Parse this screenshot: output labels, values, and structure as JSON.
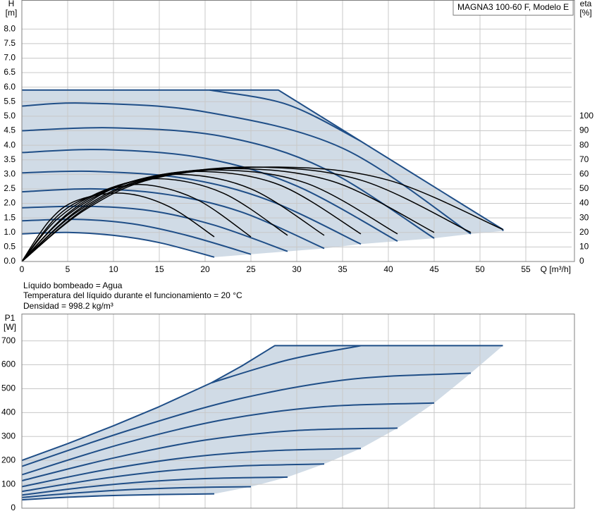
{
  "chart_data": [
    {
      "type": "line",
      "title": "MAGNA3 100-60 F, Modelo E",
      "y_label": "H",
      "y_unit": "[m]",
      "y2_label": "eta",
      "y2_unit": "[%]",
      "x_label": "Q [m³/h]",
      "annotations": [
        "Líquido bombeado = Agua",
        "Temperatura del líquido durante el funcionamiento = 20 °C",
        "Densidad = 998.2 kg/m³"
      ],
      "xlim": [
        0,
        60
      ],
      "ylim": [
        0,
        9
      ],
      "y2lim": [
        0,
        180
      ],
      "grid": true,
      "fill": "#d0dbe6",
      "xticks": [
        0,
        5,
        10,
        15,
        20,
        25,
        30,
        35,
        40,
        45,
        50,
        55
      ],
      "yticks": [
        {
          "value": 0,
          "label": "0.0"
        },
        {
          "value": 0.5,
          "label": "0.5"
        },
        {
          "value": 1,
          "label": "1.0"
        },
        {
          "value": 1.5,
          "label": "1.5"
        },
        {
          "value": 2,
          "label": "2.0"
        },
        {
          "value": 2.5,
          "label": "2.5"
        },
        {
          "value": 3,
          "label": "3.0"
        },
        {
          "value": 3.5,
          "label": "3.5"
        },
        {
          "value": 4,
          "label": "4.0"
        },
        {
          "value": 4.5,
          "label": "4.5"
        },
        {
          "value": 5,
          "label": "5.0"
        },
        {
          "value": 5.5,
          "label": "5.5"
        },
        {
          "value": 6,
          "label": "6.0"
        },
        {
          "value": 6.5,
          "label": "6.5"
        },
        {
          "value": 7,
          "label": "7.0"
        },
        {
          "value": 7.5,
          "label": "7.5"
        },
        {
          "value": 8,
          "label": "8.0"
        }
      ],
      "y2ticks": [
        0,
        10,
        20,
        30,
        40,
        50,
        60,
        70,
        80,
        90,
        100
      ],
      "series": [
        {
          "color": "#1f4e87",
          "smooth": false,
          "x": [
            0,
            28,
            52.5,
            52.5
          ],
          "values": [
            5.9,
            5.9,
            1.1,
            1.05
          ]
        },
        {
          "color": "#1f4e87",
          "smooth": true,
          "x": [
            20.5,
            29,
            37
          ],
          "values": [
            5.9,
            5.4,
            4.14
          ]
        },
        {
          "color": "#1f4e87",
          "smooth": true,
          "x": [
            0,
            7,
            20,
            35,
            49
          ],
          "values": [
            5.35,
            5.45,
            5.15,
            3.9,
            0.95
          ]
        },
        {
          "color": "#1f4e87",
          "smooth": true,
          "x": [
            0,
            10,
            22,
            33,
            45
          ],
          "values": [
            4.5,
            4.6,
            4.3,
            3.2,
            0.8
          ]
        },
        {
          "color": "#1f4e87",
          "smooth": true,
          "x": [
            0,
            9,
            20,
            30,
            41
          ],
          "values": [
            3.75,
            3.85,
            3.55,
            2.6,
            0.7
          ]
        },
        {
          "color": "#1f4e87",
          "smooth": true,
          "x": [
            0,
            8,
            18,
            27,
            37
          ],
          "values": [
            3.05,
            3.1,
            2.85,
            2.1,
            0.6
          ]
        },
        {
          "color": "#1f4e87",
          "smooth": true,
          "x": [
            0,
            8,
            16,
            24,
            33
          ],
          "values": [
            2.4,
            2.5,
            2.3,
            1.7,
            0.45
          ]
        },
        {
          "color": "#1f4e87",
          "smooth": true,
          "x": [
            0,
            7,
            14,
            21,
            29
          ],
          "values": [
            1.85,
            1.9,
            1.75,
            1.25,
            0.35
          ]
        },
        {
          "color": "#1f4e87",
          "smooth": true,
          "x": [
            0,
            6,
            12,
            18,
            25
          ],
          "values": [
            1.4,
            1.45,
            1.3,
            0.9,
            0.25
          ]
        },
        {
          "color": "#1f4e87",
          "smooth": true,
          "x": [
            0,
            5,
            10,
            15,
            21
          ],
          "values": [
            0.95,
            1.0,
            0.9,
            0.65,
            0.15
          ]
        },
        {
          "color": "#000000",
          "axis": "y2",
          "smooth": true,
          "x": [
            0,
            3,
            6,
            11,
            16,
            21
          ],
          "values": [
            0,
            28,
            42,
            47,
            38,
            17
          ]
        },
        {
          "color": "#000000",
          "axis": "y2",
          "smooth": true,
          "x": [
            0,
            4,
            8,
            13,
            19,
            25
          ],
          "values": [
            0,
            32,
            46,
            53,
            43,
            17
          ]
        },
        {
          "color": "#000000",
          "axis": "y2",
          "smooth": true,
          "x": [
            0,
            4,
            9,
            15,
            22,
            29
          ],
          "values": [
            0,
            30,
            49,
            57,
            47,
            18
          ]
        },
        {
          "color": "#000000",
          "axis": "y2",
          "smooth": true,
          "x": [
            0,
            5,
            10,
            17,
            25,
            33
          ],
          "values": [
            0,
            33,
            51,
            60,
            50,
            18
          ]
        },
        {
          "color": "#000000",
          "axis": "y2",
          "smooth": true,
          "x": [
            0,
            5,
            11,
            19,
            28,
            37
          ],
          "values": [
            0,
            32,
            53,
            62,
            53,
            19
          ]
        },
        {
          "color": "#000000",
          "axis": "y2",
          "smooth": true,
          "x": [
            0,
            6,
            12,
            21,
            31,
            41
          ],
          "values": [
            0,
            35,
            55,
            63,
            54,
            19
          ]
        },
        {
          "color": "#000000",
          "axis": "y2",
          "smooth": true,
          "x": [
            0,
            6,
            13,
            23,
            34,
            45
          ],
          "values": [
            0,
            34,
            56,
            64,
            55,
            20
          ]
        },
        {
          "color": "#000000",
          "axis": "y2",
          "smooth": true,
          "x": [
            0,
            7,
            14,
            25,
            37,
            49
          ],
          "values": [
            0,
            37,
            57,
            65,
            56,
            20
          ]
        },
        {
          "color": "#000000",
          "axis": "y2",
          "smooth": true,
          "x": [
            0,
            7,
            15,
            28,
            40,
            52.5
          ],
          "values": [
            0,
            36,
            58,
            65,
            56,
            22
          ]
        }
      ]
    },
    {
      "type": "line",
      "y_label": "P1",
      "y_unit": "[W]",
      "xlim": [
        0,
        60
      ],
      "ylim": [
        0,
        814
      ],
      "grid": true,
      "fill": "#d0dbe6",
      "yticks": [
        0,
        100,
        200,
        300,
        400,
        500,
        600,
        700
      ],
      "series": [
        {
          "color": "#1f4e87",
          "smooth": false,
          "x": [
            0,
            5,
            10,
            15,
            20.7,
            24,
            27.6,
            52.5
          ],
          "values": [
            200,
            270,
            345,
            425,
            525,
            595,
            680,
            680
          ]
        },
        {
          "color": "#1f4e87",
          "smooth": true,
          "x": [
            20.7,
            29,
            37
          ],
          "values": [
            525,
            620,
            680
          ]
        },
        {
          "color": "#1f4e87",
          "smooth": true,
          "x": [
            0,
            12,
            24,
            36,
            49
          ],
          "values": [
            175,
            330,
            460,
            540,
            565
          ]
        },
        {
          "color": "#1f4e87",
          "smooth": true,
          "x": [
            0,
            11,
            22,
            33,
            45
          ],
          "values": [
            140,
            270,
            370,
            425,
            440
          ]
        },
        {
          "color": "#1f4e87",
          "smooth": true,
          "x": [
            0,
            10,
            20,
            30,
            41
          ],
          "values": [
            115,
            210,
            285,
            325,
            335
          ]
        },
        {
          "color": "#1f4e87",
          "smooth": true,
          "x": [
            0,
            9,
            18,
            27,
            37
          ],
          "values": [
            90,
            160,
            212,
            240,
            250
          ]
        },
        {
          "color": "#1f4e87",
          "smooth": true,
          "x": [
            0,
            8,
            16,
            24,
            33
          ],
          "values": [
            70,
            120,
            157,
            177,
            185
          ]
        },
        {
          "color": "#1f4e87",
          "smooth": true,
          "x": [
            0,
            7,
            14,
            21,
            29
          ],
          "values": [
            55,
            88,
            112,
            125,
            130
          ]
        },
        {
          "color": "#1f4e87",
          "smooth": true,
          "x": [
            0,
            6,
            12,
            18,
            25
          ],
          "values": [
            45,
            64,
            78,
            86,
            90
          ]
        },
        {
          "color": "#1f4e87",
          "smooth": true,
          "x": [
            0,
            5,
            10,
            15,
            21
          ],
          "values": [
            35,
            46,
            53,
            57,
            60
          ]
        }
      ]
    }
  ]
}
